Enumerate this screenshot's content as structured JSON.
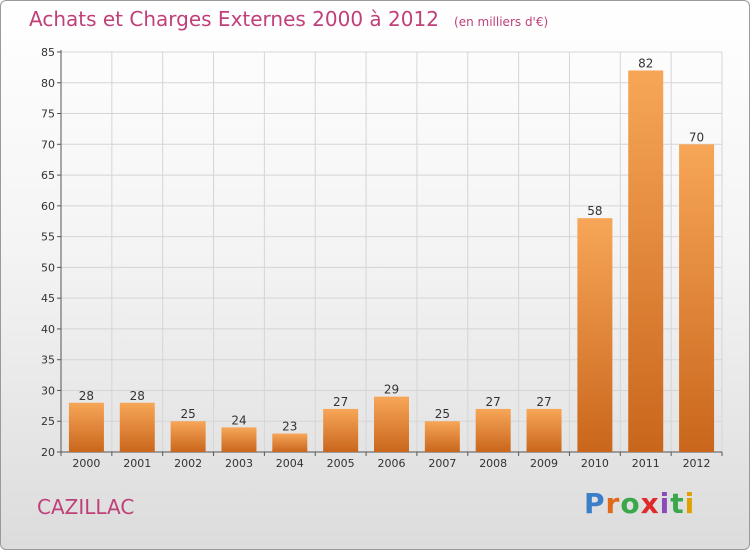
{
  "header": {
    "title": "Achats et Charges Externes 2000 à 2012",
    "subtitle": "(en milliers d'€)"
  },
  "footer": {
    "commune": "CAZILLAC",
    "logo_text": "Proxiti",
    "logo_colors": [
      "#3a7fc8",
      "#e06a1a",
      "#3aa84a",
      "#e02a2a",
      "#8a4ab8",
      "#3aa84a",
      "#e0a000"
    ]
  },
  "colors": {
    "title": "#c0407a",
    "bar_light": "#f7a658",
    "bar_dark": "#c9661c",
    "grid": "#d5d5d5"
  },
  "chart_data": {
    "type": "bar",
    "title": "Achats et Charges Externes 2000 à 2012",
    "categories": [
      "2000",
      "2001",
      "2002",
      "2003",
      "2004",
      "2005",
      "2006",
      "2007",
      "2008",
      "2009",
      "2010",
      "2011",
      "2012"
    ],
    "values": [
      28,
      28,
      25,
      24,
      23,
      27,
      29,
      25,
      27,
      27,
      58,
      82,
      70
    ],
    "ylim": [
      20,
      85
    ],
    "yticks": [
      20,
      25,
      30,
      35,
      40,
      45,
      50,
      55,
      60,
      65,
      70,
      75,
      80,
      85
    ],
    "grid": true,
    "data_labels": true
  }
}
